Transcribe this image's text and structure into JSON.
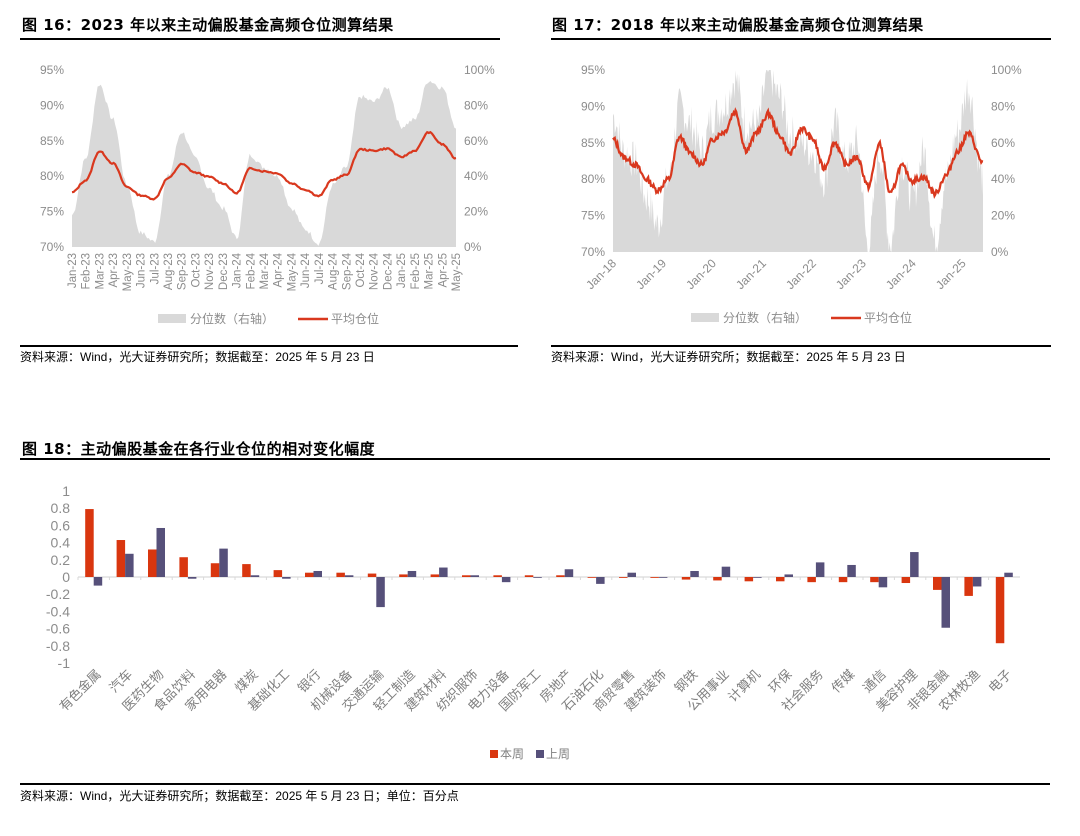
{
  "fig16": {
    "title": "图 16：2023 年以来主动偏股基金高频仓位测算结果",
    "source": "资料来源：Wind，光大证券研究所；数据截至：2025 年 5 月 23 日"
  },
  "fig17": {
    "title": "图 17：2018 年以来主动偏股基金高频仓位测算结果",
    "source": "资料来源：Wind，光大证券研究所；数据截至：2025 年 5 月 23 日"
  },
  "fig18": {
    "title": "图 18：主动偏股基金在各行业仓位的相对变化幅度",
    "source": "资料来源：Wind，光大证券研究所；数据截至：2025 年 5 月 23 日；单位：百分点"
  },
  "colors": {
    "line": "#d9381e",
    "area": "#d9d9d9",
    "this_week": "#d9360f",
    "last_week": "#56507a",
    "axis_text": "#8c8c8c"
  },
  "chart_data": [
    {
      "type": "area+line",
      "title": "2023 年以来主动偏股基金高频仓位测算结果",
      "x": [
        "Jan-23",
        "Feb-23",
        "Mar-23",
        "Apr-23",
        "May-23",
        "Jun-23",
        "Jul-23",
        "Aug-23",
        "Sep-23",
        "Oct-23",
        "Nov-23",
        "Dec-23",
        "Jan-24",
        "Feb-24",
        "Mar-24",
        "Apr-24",
        "May-24",
        "Jun-24",
        "Jul-24",
        "Aug-24",
        "Sep-24",
        "Oct-24",
        "Nov-24",
        "Dec-24",
        "Jan-25",
        "Feb-25",
        "Mar-25",
        "Apr-25",
        "May-25"
      ],
      "left_axis": {
        "ticks": [
          "70%",
          "75%",
          "80%",
          "85%",
          "90%",
          "95%"
        ],
        "range": [
          0.7,
          0.95
        ]
      },
      "right_axis": {
        "ticks": [
          "0%",
          "20%",
          "40%",
          "60%",
          "80%",
          "100%"
        ],
        "range": [
          0,
          1.0
        ]
      },
      "series": [
        {
          "name": "分位数（右轴）",
          "type": "area",
          "axis": "right",
          "values": [
            0.18,
            0.5,
            0.92,
            0.72,
            0.35,
            0.08,
            0.03,
            0.4,
            0.65,
            0.5,
            0.33,
            0.22,
            0.05,
            0.52,
            0.45,
            0.4,
            0.22,
            0.1,
            0.02,
            0.35,
            0.45,
            0.85,
            0.82,
            0.9,
            0.68,
            0.72,
            0.94,
            0.9,
            0.68
          ]
        },
        {
          "name": "平均仓位",
          "type": "line",
          "axis": "left",
          "values": [
            0.777,
            0.794,
            0.835,
            0.818,
            0.785,
            0.773,
            0.768,
            0.797,
            0.817,
            0.805,
            0.799,
            0.79,
            0.776,
            0.811,
            0.807,
            0.804,
            0.79,
            0.781,
            0.772,
            0.795,
            0.802,
            0.838,
            0.836,
            0.839,
            0.827,
            0.836,
            0.862,
            0.845,
            0.825
          ]
        }
      ],
      "legend": [
        "分位数（右轴）",
        "平均仓位"
      ],
      "legend_position": "bottom"
    },
    {
      "type": "area+line",
      "title": "2018 年以来主动偏股基金高频仓位测算结果",
      "x": [
        "Jan-18",
        "Jan-19",
        "Jan-20",
        "Jan-21",
        "Jan-22",
        "Jan-23",
        "Jan-24",
        "Jan-25"
      ],
      "left_axis": {
        "ticks": [
          "70%",
          "75%",
          "80%",
          "85%",
          "90%",
          "95%"
        ],
        "range": [
          0.7,
          0.95
        ]
      },
      "right_axis": {
        "ticks": [
          "0%",
          "20%",
          "40%",
          "60%",
          "80%",
          "100%"
        ],
        "range": [
          0,
          1.0
        ]
      },
      "series": [
        {
          "name": "分位数（右轴）",
          "type": "area",
          "axis": "right",
          "x_fraction": [
            0.0,
            0.03,
            0.06,
            0.09,
            0.12,
            0.15,
            0.18,
            0.21,
            0.24,
            0.27,
            0.3,
            0.33,
            0.36,
            0.39,
            0.42,
            0.45,
            0.48,
            0.51,
            0.54,
            0.57,
            0.6,
            0.63,
            0.66,
            0.69,
            0.72,
            0.75,
            0.78,
            0.81,
            0.84,
            0.87,
            0.9,
            0.93,
            0.96,
            1.0
          ],
          "values": [
            0.75,
            0.55,
            0.5,
            0.3,
            0.15,
            0.4,
            0.8,
            0.7,
            0.55,
            0.75,
            0.8,
            0.95,
            0.7,
            0.7,
            0.98,
            0.85,
            0.65,
            0.6,
            0.55,
            0.4,
            0.7,
            0.5,
            0.6,
            0.02,
            0.55,
            0.05,
            0.5,
            0.3,
            0.55,
            0.05,
            0.4,
            0.65,
            0.9,
            0.4
          ]
        },
        {
          "name": "平均仓位",
          "type": "line",
          "axis": "left",
          "x_fraction": [
            0.0,
            0.03,
            0.06,
            0.09,
            0.12,
            0.15,
            0.18,
            0.21,
            0.24,
            0.27,
            0.3,
            0.33,
            0.36,
            0.39,
            0.42,
            0.45,
            0.48,
            0.51,
            0.54,
            0.57,
            0.6,
            0.63,
            0.66,
            0.69,
            0.72,
            0.75,
            0.78,
            0.81,
            0.84,
            0.87,
            0.9,
            0.93,
            0.96,
            1.0
          ],
          "values": [
            0.855,
            0.83,
            0.82,
            0.8,
            0.785,
            0.8,
            0.858,
            0.835,
            0.82,
            0.855,
            0.865,
            0.893,
            0.84,
            0.865,
            0.89,
            0.86,
            0.835,
            0.87,
            0.855,
            0.815,
            0.85,
            0.82,
            0.83,
            0.79,
            0.848,
            0.78,
            0.818,
            0.798,
            0.803,
            0.78,
            0.805,
            0.837,
            0.863,
            0.823
          ]
        }
      ],
      "legend": [
        "分位数（右轴）",
        "平均仓位"
      ],
      "legend_position": "bottom"
    },
    {
      "type": "bar",
      "title": "主动偏股基金在各行业仓位的相对变化幅度",
      "ylabel": "百分点",
      "ylim": [
        -1,
        1
      ],
      "yticks": [
        "1",
        "0.8",
        "0.6",
        "0.4",
        "0.2",
        "0",
        "-0.2",
        "-0.4",
        "-0.6",
        "-0.8",
        "-1"
      ],
      "categories": [
        "有色金属",
        "汽车",
        "医药生物",
        "食品饮料",
        "家用电器",
        "煤炭",
        "基础化工",
        "银行",
        "机械设备",
        "交通运输",
        "轻工制造",
        "建筑材料",
        "纺织服饰",
        "电力设备",
        "国防军工",
        "房地产",
        "石油石化",
        "商贸零售",
        "建筑装饰",
        "钢铁",
        "公用事业",
        "计算机",
        "环保",
        "社会服务",
        "传媒",
        "通信",
        "美容护理",
        "非银金融",
        "农林牧渔",
        "电子"
      ],
      "series": [
        {
          "name": "本周",
          "values": [
            0.79,
            0.43,
            0.32,
            0.23,
            0.16,
            0.15,
            0.08,
            0.05,
            0.05,
            0.04,
            0.03,
            0.03,
            0.02,
            0.02,
            0.02,
            0.02,
            0.0,
            -0.01,
            -0.01,
            -0.03,
            -0.04,
            -0.05,
            -0.05,
            -0.06,
            -0.06,
            -0.06,
            -0.07,
            -0.15,
            -0.22,
            -0.77
          ]
        },
        {
          "name": "上周",
          "values": [
            -0.1,
            0.27,
            0.57,
            -0.02,
            0.33,
            0.02,
            -0.02,
            0.07,
            0.02,
            -0.35,
            0.07,
            0.11,
            0.02,
            -0.06,
            0.0,
            0.09,
            -0.08,
            0.05,
            0.0,
            0.07,
            0.12,
            0.0,
            0.03,
            0.17,
            0.14,
            -0.12,
            0.29,
            -0.59,
            -0.11,
            0.05
          ]
        }
      ],
      "legend": [
        "本周",
        "上周"
      ],
      "legend_position": "bottom"
    }
  ]
}
